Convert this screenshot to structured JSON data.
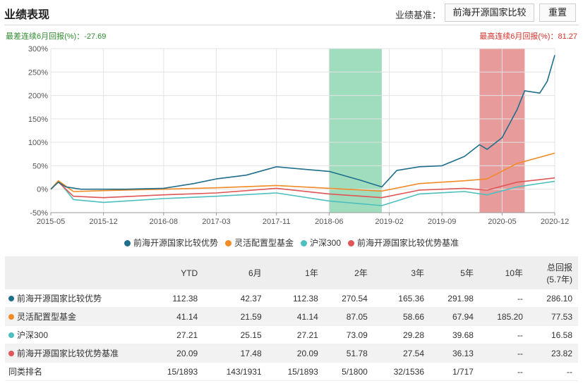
{
  "header": {
    "title": "业绩表现",
    "benchmark_label": "业绩基准：",
    "benchmark_value": "前海开源国家比较",
    "reset_label": "重置"
  },
  "stats": {
    "worst": "最差连续6月回报(%)：-27.69",
    "best": "最高连续6月回报(%)：81.27",
    "worst_color": "#2e8b2e",
    "best_color": "#d9302b"
  },
  "chart_data": {
    "type": "line",
    "x_ticks": [
      "2015-05",
      "2015-12",
      "2016-08",
      "2017-03",
      "2017-11",
      "2018-06",
      "2019-02",
      "2019-09",
      "2020-05",
      "2020-12"
    ],
    "y_ticks": [
      "300%",
      "250%",
      "200%",
      "150%",
      "100%",
      "50%",
      "0%",
      "-50%"
    ],
    "ylim": [
      -50,
      300
    ],
    "grid": true,
    "legend_position": "bottom",
    "highlight_periods": [
      {
        "kind": "worst_6m",
        "start": "2018-06",
        "end": "2019-01",
        "color": "#7fd1a8"
      },
      {
        "kind": "best_6m",
        "start": "2020-02",
        "end": "2020-08",
        "color": "#e07a7a"
      }
    ],
    "series": [
      {
        "name": "前海开源国家比较优势",
        "color": "#1f6e8c",
        "x": [
          "2015-05",
          "2015-06",
          "2015-07",
          "2015-09",
          "2015-12",
          "2016-03",
          "2016-08",
          "2016-12",
          "2017-03",
          "2017-07",
          "2017-11",
          "2018-01",
          "2018-06",
          "2018-10",
          "2019-01",
          "2019-03",
          "2019-06",
          "2019-09",
          "2019-12",
          "2020-02",
          "2020-03",
          "2020-05",
          "2020-07",
          "2020-08",
          "2020-10",
          "2020-11",
          "2020-12"
        ],
        "values": [
          0,
          15,
          5,
          0,
          0,
          0,
          2,
          12,
          22,
          30,
          48,
          45,
          38,
          20,
          5,
          40,
          48,
          50,
          70,
          95,
          85,
          110,
          170,
          210,
          205,
          230,
          286
        ]
      },
      {
        "name": "灵活配置型基金",
        "color": "#f28a25",
        "x": [
          "2015-05",
          "2015-06",
          "2015-08",
          "2015-12",
          "2016-08",
          "2017-03",
          "2017-11",
          "2018-06",
          "2019-01",
          "2019-06",
          "2019-12",
          "2020-03",
          "2020-07",
          "2020-12"
        ],
        "values": [
          0,
          18,
          -5,
          -3,
          0,
          3,
          8,
          2,
          -4,
          12,
          18,
          22,
          55,
          77
        ]
      },
      {
        "name": "沪深300",
        "color": "#4dbfbf",
        "x": [
          "2015-05",
          "2015-06",
          "2015-08",
          "2015-12",
          "2016-03",
          "2016-08",
          "2017-03",
          "2017-11",
          "2018-06",
          "2019-01",
          "2019-06",
          "2019-12",
          "2020-03",
          "2020-07",
          "2020-12"
        ],
        "values": [
          0,
          18,
          -22,
          -28,
          -25,
          -20,
          -15,
          -8,
          -25,
          -35,
          -10,
          -5,
          -12,
          5,
          17
        ]
      },
      {
        "name": "前海开源国家比较优势基准",
        "color": "#e05555",
        "x": [
          "2015-05",
          "2015-06",
          "2015-08",
          "2015-12",
          "2016-08",
          "2017-03",
          "2017-11",
          "2018-06",
          "2019-01",
          "2019-06",
          "2019-12",
          "2020-03",
          "2020-07",
          "2020-12"
        ],
        "values": [
          0,
          15,
          -15,
          -18,
          -12,
          -8,
          2,
          -10,
          -18,
          -2,
          2,
          -2,
          15,
          24
        ]
      }
    ]
  },
  "table": {
    "headers": [
      "YTD",
      "6月",
      "1年",
      "2年",
      "3年",
      "5年",
      "10年",
      "总回报",
      "(5.7年)"
    ],
    "rows": [
      {
        "name": "前海开源国家比较优势",
        "color": "#1f6e8c",
        "values": [
          "112.38",
          "42.37",
          "112.38",
          "270.54",
          "165.36",
          "291.98",
          "--",
          "286.10"
        ]
      },
      {
        "name": "灵活配置型基金",
        "color": "#f28a25",
        "values": [
          "41.14",
          "21.59",
          "41.14",
          "87.05",
          "58.66",
          "67.94",
          "185.20",
          "77.53"
        ]
      },
      {
        "name": "沪深300",
        "color": "#4dbfbf",
        "values": [
          "27.21",
          "25.15",
          "27.21",
          "73.09",
          "29.28",
          "39.68",
          "--",
          "16.58"
        ]
      },
      {
        "name": "前海开源国家比较优势基准",
        "color": "#e05555",
        "values": [
          "20.09",
          "17.48",
          "20.09",
          "51.78",
          "27.54",
          "36.13",
          "--",
          "23.82"
        ]
      },
      {
        "name": "同类排名",
        "color": "",
        "values": [
          "15/1893",
          "143/1931",
          "15/1893",
          "5/1800",
          "32/1536",
          "1/717",
          "--",
          "--"
        ]
      }
    ]
  }
}
